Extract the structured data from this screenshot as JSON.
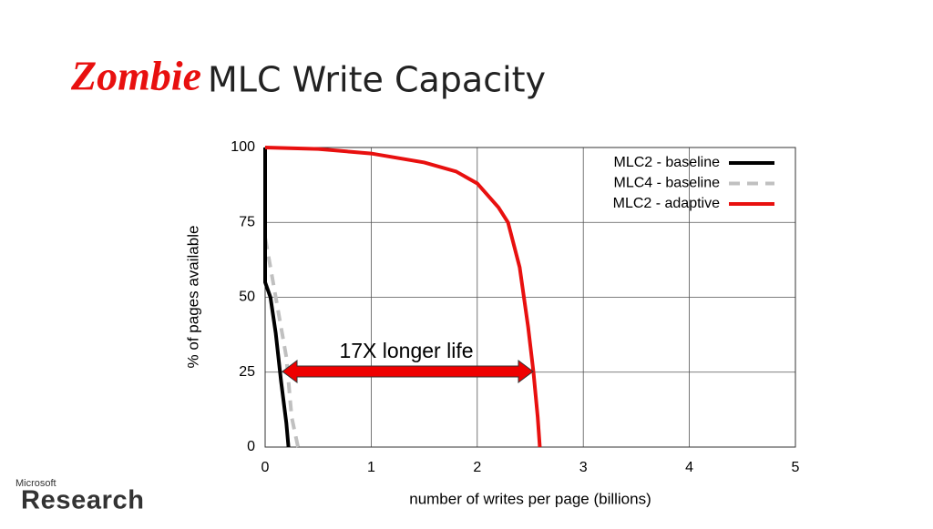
{
  "slide": {
    "title_highlight": "Zombie",
    "title": "MLC Write Capacity"
  },
  "logo": {
    "small": "Microsoft",
    "large": "Research"
  },
  "chart_data": {
    "type": "line",
    "xlabel": "number of writes per page (billions)",
    "ylabel": "% of pages available",
    "xlim": [
      0,
      5
    ],
    "xticks": [
      0,
      1,
      2,
      3,
      4,
      5
    ],
    "ylim": [
      0,
      100
    ],
    "yticks": [
      0,
      25,
      50,
      75,
      100
    ],
    "grid": true,
    "legend": "upper right",
    "annotation": "17X longer life",
    "series": [
      {
        "name": "MLC2 - baseline",
        "color": "#000000",
        "style": "solid",
        "x": [
          0,
          0,
          0.05,
          0.1,
          0.15,
          0.2,
          0.22
        ],
        "values": [
          100,
          55,
          50,
          38,
          22,
          8,
          0
        ]
      },
      {
        "name": "MLC4 - baseline",
        "color": "#c0c0c0",
        "style": "dashed",
        "x": [
          0,
          0,
          0.1,
          0.2,
          0.25,
          0.31
        ],
        "values": [
          100,
          70,
          50,
          30,
          10,
          0
        ]
      },
      {
        "name": "MLC2 - adaptive",
        "color": "#e8100f",
        "style": "solid",
        "x": [
          0,
          0.5,
          1,
          1.5,
          1.8,
          2,
          2.2,
          2.29,
          2.4,
          2.48,
          2.53,
          2.57,
          2.59
        ],
        "values": [
          100,
          99.5,
          98,
          95,
          92,
          88,
          80,
          75,
          60,
          40,
          25,
          10,
          0
        ]
      }
    ]
  }
}
